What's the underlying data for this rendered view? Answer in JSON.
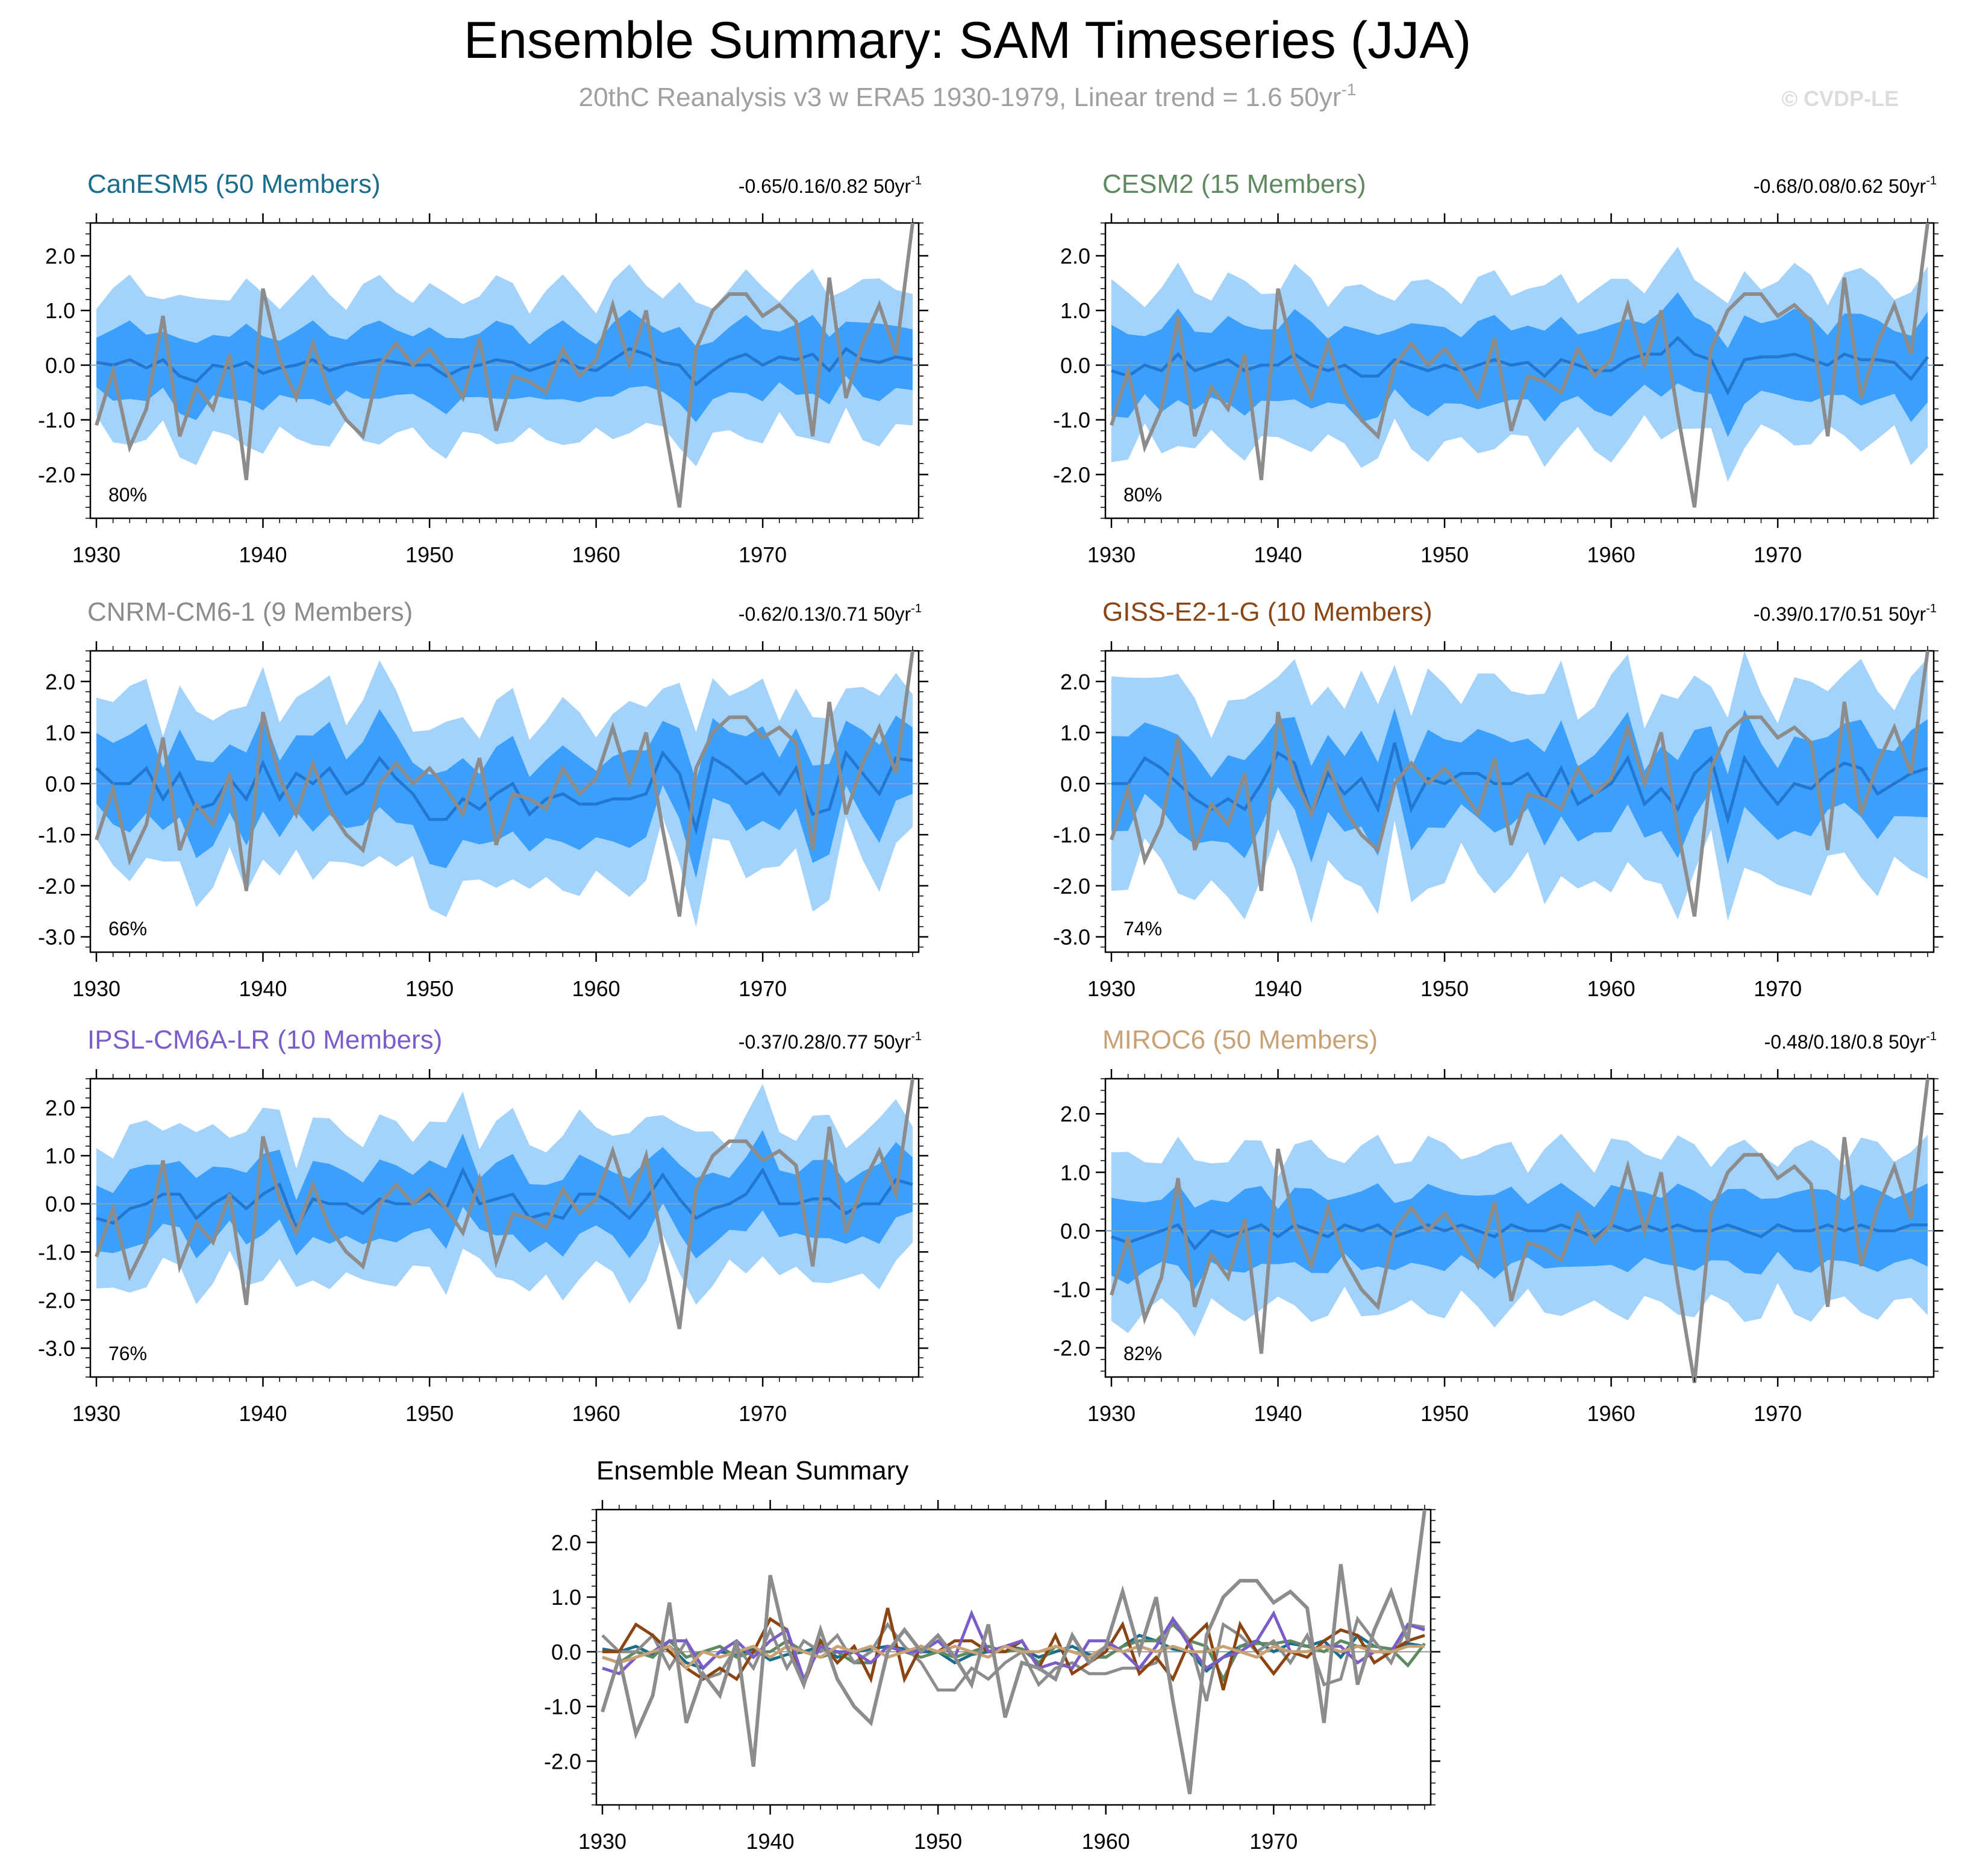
{
  "header": {
    "title": "Ensemble Summary: SAM Timeseries (JJA)",
    "subtitle": "20thC Reanalysis v3 w ERA5 1930-1979, Linear trend = 1.6 50yr",
    "subtitle_sup": "-1",
    "watermark": "© CVDP-LE"
  },
  "chart_data": [
    {
      "type": "line",
      "title": "CanESM5 (50 Members)",
      "title_color": "#1a6e8c",
      "trend_label": "-0.65/0.16/0.82 50yr",
      "trend_sup": "-1",
      "pct_label": "80%",
      "xlim": [
        1930,
        1979
      ],
      "ylim": [
        -2.8,
        2.6
      ],
      "yticks": [
        -2.0,
        -1.0,
        0.0,
        1.0,
        2.0
      ],
      "xticks": [
        1930,
        1940,
        1950,
        1960,
        1970
      ],
      "ensemble_mean": [
        0.05,
        0.0,
        0.1,
        -0.05,
        0.1,
        -0.2,
        -0.3,
        0.0,
        -0.05,
        0.05,
        -0.15,
        -0.05,
        0.0,
        0.1,
        -0.1,
        0.0,
        0.05,
        0.1,
        0.05,
        0.0,
        0.0,
        -0.2,
        -0.05,
        0.0,
        0.1,
        0.05,
        -0.1,
        0.0,
        0.1,
        -0.05,
        -0.1,
        0.1,
        0.3,
        0.2,
        0.05,
        0.0,
        -0.35,
        -0.1,
        0.1,
        0.2,
        0.0,
        0.15,
        0.1,
        0.2,
        -0.1,
        0.3,
        0.1,
        0.05,
        0.15,
        0.1
      ],
      "inner_half_width": 0.6,
      "outer_half_width": 1.3
    },
    {
      "type": "line",
      "title": "CESM2 (15 Members)",
      "title_color": "#5f8a61",
      "trend_label": "-0.68/0.08/0.62 50yr",
      "trend_sup": "-1",
      "pct_label": "80%",
      "xlim": [
        1930,
        1979
      ],
      "ylim": [
        -2.8,
        2.6
      ],
      "yticks": [
        -2.0,
        -1.0,
        0.0,
        1.0,
        2.0
      ],
      "xticks": [
        1930,
        1940,
        1950,
        1960,
        1970
      ],
      "ensemble_mean": [
        -0.1,
        -0.2,
        0.0,
        -0.1,
        0.2,
        -0.1,
        0.0,
        0.1,
        -0.1,
        0.0,
        0.0,
        0.2,
        0.0,
        -0.1,
        0.0,
        -0.2,
        -0.2,
        0.1,
        0.0,
        -0.1,
        0.0,
        -0.1,
        0.0,
        0.1,
        0.0,
        0.05,
        -0.2,
        0.1,
        0.0,
        -0.1,
        -0.1,
        0.1,
        0.2,
        0.2,
        0.5,
        0.2,
        0.1,
        -0.5,
        0.1,
        0.15,
        0.15,
        0.2,
        0.1,
        0.0,
        0.2,
        0.1,
        0.1,
        0.05,
        -0.25,
        0.15
      ],
      "inner_half_width": 0.7,
      "outer_half_width": 1.4
    },
    {
      "type": "line",
      "title": "CNRM-CM6-1 (9 Members)",
      "title_color": "#8c8c8c",
      "trend_label": "-0.62/0.13/0.71 50yr",
      "trend_sup": "-1",
      "pct_label": "66%",
      "xlim": [
        1930,
        1979
      ],
      "ylim": [
        -3.3,
        2.6
      ],
      "yticks": [
        -3.0,
        -2.0,
        -1.0,
        0.0,
        1.0,
        2.0
      ],
      "xticks": [
        1930,
        1940,
        1950,
        1960,
        1970
      ],
      "ensemble_mean": [
        0.3,
        0.0,
        0.0,
        0.3,
        -0.3,
        0.2,
        -0.5,
        -0.4,
        0.1,
        -0.3,
        0.4,
        -0.3,
        0.2,
        0.0,
        0.3,
        -0.2,
        0.0,
        0.5,
        0.1,
        -0.2,
        -0.7,
        -0.7,
        -0.3,
        -0.5,
        -0.2,
        0.0,
        -0.6,
        -0.3,
        -0.2,
        -0.4,
        -0.4,
        -0.3,
        -0.3,
        -0.2,
        0.6,
        0.2,
        -0.9,
        0.5,
        0.3,
        0.0,
        0.2,
        -0.2,
        0.3,
        -0.6,
        -0.5,
        0.6,
        0.2,
        -0.2,
        0.5,
        0.45
      ],
      "inner_half_width": 0.8,
      "outer_half_width": 1.6
    },
    {
      "type": "line",
      "title": "GISS-E2-1-G (10 Members)",
      "title_color": "#8b4513",
      "trend_label": "-0.39/0.17/0.51 50yr",
      "trend_sup": "-1",
      "pct_label": "74%",
      "xlim": [
        1930,
        1979
      ],
      "ylim": [
        -3.3,
        2.6
      ],
      "yticks": [
        -3.0,
        -2.0,
        -1.0,
        0.0,
        1.0,
        2.0
      ],
      "xticks": [
        1930,
        1940,
        1950,
        1960,
        1970
      ],
      "ensemble_mean": [
        0.0,
        0.0,
        0.5,
        0.3,
        0.0,
        -0.3,
        -0.5,
        -0.3,
        -0.5,
        0.0,
        0.6,
        0.4,
        -0.6,
        0.2,
        -0.2,
        0.1,
        -0.5,
        0.8,
        -0.5,
        0.1,
        0.0,
        0.2,
        0.2,
        0.0,
        0.0,
        0.2,
        -0.3,
        0.3,
        -0.4,
        -0.2,
        0.0,
        0.5,
        -0.4,
        -0.1,
        -0.5,
        0.2,
        0.5,
        -0.7,
        0.5,
        0.0,
        -0.4,
        0.0,
        -0.1,
        0.2,
        0.4,
        0.3,
        -0.2,
        0.0,
        0.2,
        0.3
      ],
      "inner_half_width": 0.8,
      "outer_half_width": 1.8
    },
    {
      "type": "line",
      "title": "IPSL-CM6A-LR (10 Members)",
      "title_color": "#7b5dc9",
      "trend_label": "-0.37/0.28/0.77 50yr",
      "trend_sup": "-1",
      "pct_label": "76%",
      "xlim": [
        1930,
        1979
      ],
      "ylim": [
        -3.6,
        2.6
      ],
      "yticks": [
        -3.0,
        -2.0,
        -1.0,
        0.0,
        1.0,
        2.0
      ],
      "xticks": [
        1930,
        1940,
        1950,
        1960,
        1970
      ],
      "ensemble_mean": [
        -0.3,
        -0.4,
        -0.1,
        0.0,
        0.2,
        0.2,
        -0.3,
        0.0,
        0.2,
        -0.1,
        0.2,
        0.4,
        -0.5,
        0.1,
        0.0,
        0.0,
        -0.2,
        0.1,
        0.0,
        0.0,
        0.2,
        -0.1,
        0.7,
        0.0,
        0.1,
        0.2,
        -0.3,
        -0.2,
        -0.3,
        0.2,
        0.2,
        0.0,
        -0.3,
        0.1,
        0.6,
        0.1,
        -0.3,
        -0.1,
        0.0,
        0.2,
        0.7,
        0.0,
        0.0,
        0.1,
        0.1,
        -0.2,
        0.0,
        0.0,
        0.5,
        0.4
      ],
      "inner_half_width": 0.7,
      "outer_half_width": 1.5
    },
    {
      "type": "line",
      "title": "MIROC6 (50 Members)",
      "title_color": "#c8a275",
      "trend_label": "-0.48/0.18/0.8 50yr",
      "trend_sup": "-1",
      "pct_label": "82%",
      "xlim": [
        1930,
        1979
      ],
      "ylim": [
        -2.5,
        2.6
      ],
      "yticks": [
        -2.0,
        -1.0,
        0.0,
        1.0,
        2.0
      ],
      "xticks": [
        1930,
        1940,
        1950,
        1960,
        1970
      ],
      "ensemble_mean": [
        -0.1,
        -0.2,
        -0.1,
        0.0,
        0.1,
        -0.3,
        0.0,
        -0.1,
        0.0,
        0.1,
        -0.1,
        0.1,
        0.0,
        -0.1,
        0.1,
        0.0,
        0.1,
        -0.1,
        0.0,
        0.1,
        0.0,
        0.1,
        0.0,
        -0.1,
        0.1,
        0.0,
        0.0,
        0.1,
        0.0,
        -0.1,
        0.1,
        0.0,
        0.1,
        0.0,
        0.1,
        0.0,
        0.0,
        0.1,
        0.0,
        -0.1,
        0.1,
        0.0,
        0.0,
        0.1,
        0.0,
        0.1,
        0.0,
        0.0,
        0.1,
        0.1
      ],
      "inner_half_width": 0.6,
      "outer_half_width": 1.3
    },
    {
      "type": "line",
      "title": "Ensemble Mean Summary",
      "title_color": "#000000",
      "xlim": [
        1930,
        1979
      ],
      "ylim": [
        -2.8,
        2.6
      ],
      "yticks": [
        -2.0,
        -1.0,
        0.0,
        1.0,
        2.0
      ],
      "xticks": [
        1930,
        1940,
        1950,
        1960,
        1970
      ],
      "series_ref": [
        "CanESM5",
        "CESM2",
        "CNRM-CM6-1",
        "GISS-E2-1-G",
        "IPSL-CM6A-LR",
        "MIROC6"
      ],
      "series_colors": [
        "#1a6e8c",
        "#5f8a61",
        "#8c8c8c",
        "#8b4513",
        "#7b5dc9",
        "#c8a275"
      ]
    }
  ],
  "observations": {
    "name": "20thC Reanalysis v3 w ERA5",
    "color": "#8c8c8c",
    "x_start": 1930,
    "values": [
      -1.1,
      -0.1,
      -1.5,
      -0.8,
      0.9,
      -1.3,
      -0.4,
      -0.8,
      0.2,
      -2.1,
      1.4,
      0.1,
      -0.6,
      0.4,
      -0.5,
      -1.0,
      -1.3,
      0.0,
      0.4,
      0.0,
      0.3,
      -0.1,
      -0.6,
      0.5,
      -1.2,
      -0.2,
      -0.3,
      -0.5,
      0.3,
      -0.2,
      0.1,
      1.1,
      0.0,
      1.0,
      -0.9,
      -2.6,
      0.3,
      1.0,
      1.3,
      1.3,
      0.9,
      1.1,
      0.8,
      -1.3,
      1.6,
      -0.6,
      0.4,
      1.1,
      0.2,
      2.6
    ]
  },
  "zero_line": 0.0
}
